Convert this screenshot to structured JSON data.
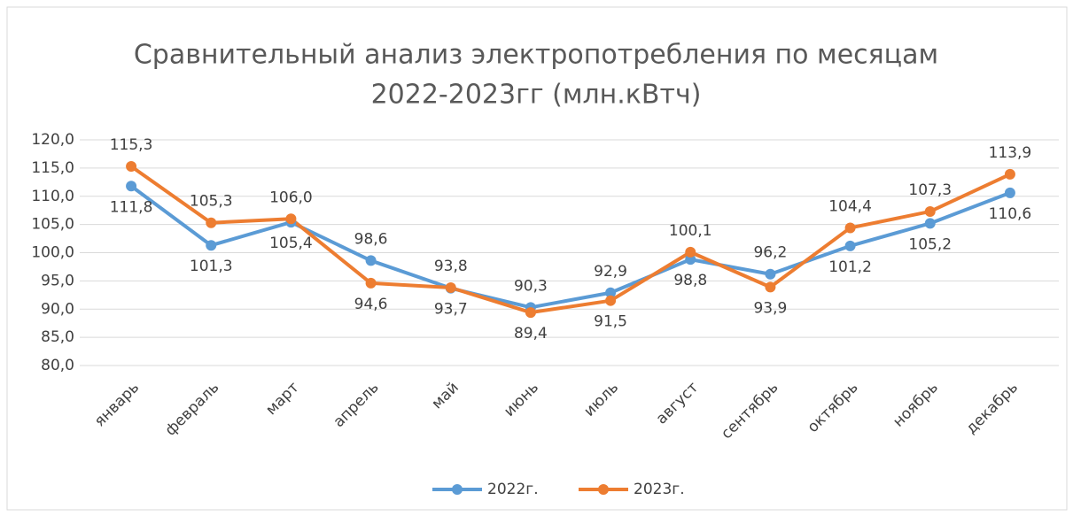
{
  "chart_data": {
    "type": "line",
    "title": [
      "Сравнительный анализ электропотребления по месяцам",
      "2022-2023гг (млн.кВтч)"
    ],
    "categories": [
      "январь",
      "февраль",
      "март",
      "апрель",
      "май",
      "июнь",
      "июль",
      "август",
      "сентябрь",
      "октябрь",
      "ноябрь",
      "декабрь"
    ],
    "series": [
      {
        "name": "2022г.",
        "color": "#5b9bd5",
        "values": [
          111.8,
          101.3,
          105.4,
          98.6,
          93.7,
          90.3,
          92.9,
          98.8,
          96.2,
          101.2,
          105.2,
          110.6
        ],
        "value_labels": [
          "111,8",
          "101,3",
          "105,4",
          "98,6",
          "93,7",
          "90,3",
          "92,9",
          "98,8",
          "96,2",
          "101,2",
          "105,2",
          "110,6"
        ]
      },
      {
        "name": "2023г.",
        "color": "#ed7d31",
        "values": [
          115.3,
          105.3,
          106.0,
          94.6,
          93.8,
          89.4,
          91.5,
          100.1,
          93.9,
          104.4,
          107.3,
          113.9
        ],
        "value_labels": [
          "115,3",
          "105,3",
          "106,0",
          "94,6",
          "93,8",
          "89,4",
          "91,5",
          "100,1",
          "93,9",
          "104,4",
          "107,3",
          "113,9"
        ]
      }
    ],
    "ylim": [
      80,
      120
    ],
    "yticks": [
      {
        "value": 80,
        "label": "80,0"
      },
      {
        "value": 85,
        "label": "85,0"
      },
      {
        "value": 90,
        "label": "90,0"
      },
      {
        "value": 95,
        "label": "95,0"
      },
      {
        "value": 100,
        "label": "100,0"
      },
      {
        "value": 105,
        "label": "105,0"
      },
      {
        "value": 110,
        "label": "110,0"
      },
      {
        "value": 115,
        "label": "115,0"
      },
      {
        "value": 120,
        "label": "120,0"
      }
    ],
    "grid": true,
    "legend": "bottom"
  }
}
